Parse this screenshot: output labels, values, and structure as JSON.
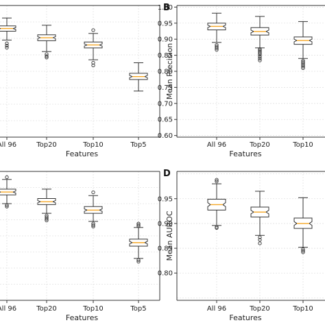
{
  "chart_data": [
    {
      "panel": "A",
      "panel_label": "",
      "type": "box",
      "xlabel": "Features",
      "ylabel": "",
      "ylim": [
        0.6,
        1.0
      ],
      "yticks": [],
      "grid": true,
      "categories": [
        "All 96",
        "Top20",
        "Top10",
        "Top5"
      ],
      "boxes": [
        {
          "whislo": 0.895,
          "q1": 0.922,
          "median": 0.93,
          "q3": 0.938,
          "whishi": 0.962,
          "fliers": [
            0.885,
            0.878,
            0.872
          ]
        },
        {
          "whislo": 0.86,
          "q1": 0.893,
          "median": 0.902,
          "q3": 0.911,
          "whishi": 0.94,
          "fliers": [
            0.852,
            0.846,
            0.842
          ]
        },
        {
          "whislo": 0.835,
          "q1": 0.871,
          "median": 0.88,
          "q3": 0.889,
          "whishi": 0.915,
          "fliers": [
            0.925,
            0.826,
            0.818
          ]
        },
        {
          "whislo": 0.74,
          "q1": 0.775,
          "median": 0.784,
          "q3": 0.794,
          "whishi": 0.826,
          "fliers": []
        }
      ]
    },
    {
      "panel": "B",
      "panel_label": "B",
      "type": "box",
      "xlabel": "Features",
      "ylabel": "Mean Precision",
      "ylim": [
        0.595,
        1.005
      ],
      "yticks": [
        "0.60",
        "0.65",
        "0.70",
        "0.75",
        "0.80",
        "0.85",
        "0.90",
        "0.95",
        "1.00"
      ],
      "grid": true,
      "categories": [
        "All 96",
        "Top20",
        "Top10"
      ],
      "boxes": [
        {
          "whislo": 0.89,
          "q1": 0.929,
          "median": 0.94,
          "q3": 0.95,
          "whishi": 0.981,
          "fliers": [
            0.882,
            0.877,
            0.872,
            0.867
          ]
        },
        {
          "whislo": 0.873,
          "q1": 0.913,
          "median": 0.924,
          "q3": 0.936,
          "whishi": 0.971,
          "fliers": [
            0.869,
            0.866,
            0.862,
            0.857,
            0.852,
            0.846,
            0.84,
            0.834
          ]
        },
        {
          "whislo": 0.84,
          "q1": 0.884,
          "median": 0.896,
          "q3": 0.907,
          "whishi": 0.955,
          "fliers": [
            0.833,
            0.829,
            0.825,
            0.82,
            0.815,
            0.81
          ]
        }
      ]
    },
    {
      "panel": "C",
      "panel_label": "",
      "type": "box",
      "xlabel": "Features",
      "ylabel": "",
      "ylim": [
        0.6,
        1.0
      ],
      "yticks": [],
      "grid": true,
      "categories": [
        "All 96",
        "Top20",
        "Top10",
        "Top5"
      ],
      "boxes": [
        {
          "whislo": 0.9,
          "q1": 0.927,
          "median": 0.936,
          "q3": 0.945,
          "whishi": 0.975,
          "fliers": [
            0.982,
            0.895,
            0.891
          ]
        },
        {
          "whislo": 0.87,
          "q1": 0.897,
          "median": 0.906,
          "q3": 0.916,
          "whishi": 0.945,
          "fliers": [
            0.863,
            0.858,
            0.853,
            0.848
          ]
        },
        {
          "whislo": 0.845,
          "q1": 0.87,
          "median": 0.88,
          "q3": 0.891,
          "whishi": 0.925,
          "fliers": [
            0.935,
            0.838,
            0.833,
            0.829
          ]
        },
        {
          "whislo": 0.73,
          "q1": 0.768,
          "median": 0.779,
          "q3": 0.79,
          "whishi": 0.826,
          "fliers": [
            0.83,
            0.834,
            0.838,
            0.725,
            0.72
          ]
        }
      ]
    },
    {
      "panel": "D",
      "panel_label": "D",
      "type": "box",
      "xlabel": "Features",
      "ylabel": "Mean AUROC",
      "ylim": [
        0.745,
        1.005
      ],
      "yticks": [
        "0.80",
        "0.85",
        "0.90",
        "0.95"
      ],
      "grid": true,
      "categories": [
        "All 96",
        "Top20",
        "Top10"
      ],
      "boxes": [
        {
          "whislo": 0.896,
          "q1": 0.927,
          "median": 0.938,
          "q3": 0.949,
          "whishi": 0.98,
          "fliers": [
            0.985,
            0.988,
            0.891,
            0.893
          ]
        },
        {
          "whislo": 0.876,
          "q1": 0.913,
          "median": 0.923,
          "q3": 0.933,
          "whishi": 0.965,
          "fliers": [
            0.872,
            0.867,
            0.86
          ]
        },
        {
          "whislo": 0.852,
          "q1": 0.89,
          "median": 0.9,
          "q3": 0.911,
          "whishi": 0.952,
          "fliers": [
            0.848,
            0.845,
            0.842
          ]
        }
      ]
    }
  ],
  "colors": {
    "box": "#333333",
    "median": "#f5a623",
    "grid": "#e2e2e2",
    "axes": "#333333"
  }
}
